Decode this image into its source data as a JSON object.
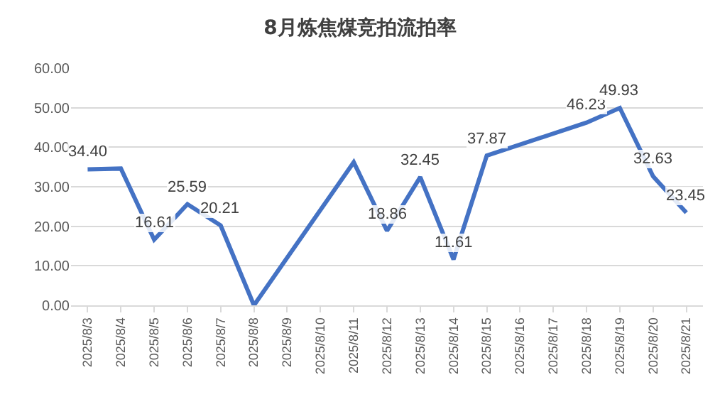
{
  "chart_data": {
    "type": "line",
    "title": "8月炼焦煤竞拍流拍率",
    "categories": [
      "2025/8/3",
      "2025/8/4",
      "2025/8/5",
      "2025/8/6",
      "2025/8/7",
      "2025/8/8",
      "2025/8/9",
      "2025/8/10",
      "2025/8/11",
      "2025/8/12",
      "2025/8/13",
      "2025/8/14",
      "2025/8/15",
      "2025/8/16",
      "2025/8/17",
      "2025/8/18",
      "2025/8/19",
      "2025/8/20",
      "2025/8/21"
    ],
    "series": [
      {
        "color": "#4472c4",
        "values": [
          34.4,
          34.6,
          16.61,
          25.59,
          20.21,
          0,
          null,
          null,
          36.2,
          18.86,
          32.45,
          11.61,
          37.87,
          null,
          null,
          46.23,
          49.93,
          32.63,
          23.45
        ],
        "value_labels": [
          "34.40",
          null,
          "16.61",
          "25.59",
          "20.21",
          null,
          null,
          null,
          null,
          "18.86",
          "32.45",
          "11.61",
          "37.87",
          null,
          null,
          "46.23",
          "49.93",
          "32.63",
          "23.45"
        ]
      }
    ],
    "ylim": [
      0,
      60
    ],
    "yticks": [
      {
        "value": 0,
        "label": "0.00"
      },
      {
        "value": 10,
        "label": "10.00"
      },
      {
        "value": 20,
        "label": "20.00"
      },
      {
        "value": 30,
        "label": "30.00"
      },
      {
        "value": 40,
        "label": "40.00"
      },
      {
        "value": 50,
        "label": "50.00"
      },
      {
        "value": 60,
        "label": "60.00"
      }
    ],
    "grid": "y",
    "marker": "none",
    "line_style": "solid"
  }
}
